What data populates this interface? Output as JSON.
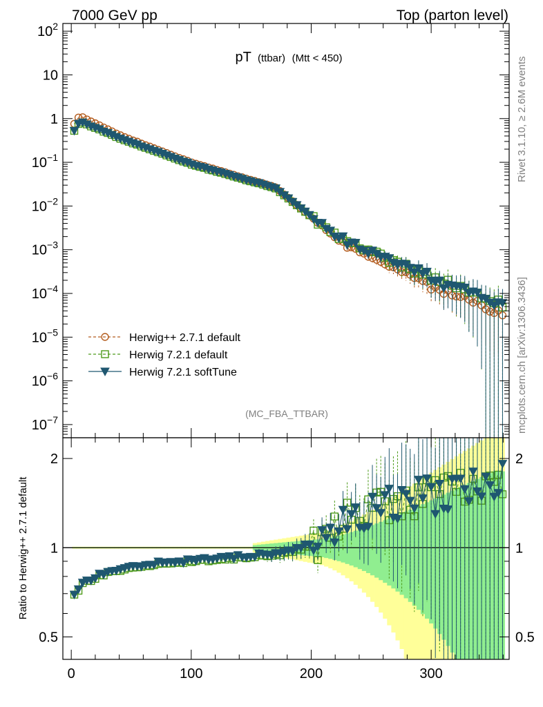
{
  "header": {
    "energy_label": "7000 GeV pp",
    "process_label": "Top (parton level)"
  },
  "side_labels": {
    "rivet": "Rivet 3.1.10, ≥ 2.6M events",
    "mcplots": "mcplots.cern.ch [arXiv:1306.3436]"
  },
  "chart_data": [
    {
      "type": "line",
      "title": "pT",
      "title_sub": "(ttbar)",
      "title_cut": "(Mtt < 450)",
      "watermark": "(MC_FBA_TTBAR)",
      "yscale": "log",
      "xlim": [
        -7,
        365
      ],
      "ylim": [
        5e-08,
        150
      ],
      "y_ticks": [
        {
          "base": "10",
          "exp": "2",
          "value": 100
        },
        {
          "base": "10",
          "exp": "",
          "value": 10
        },
        {
          "base": "1",
          "exp": "",
          "value": 1
        },
        {
          "base": "10",
          "exp": "−1",
          "value": 0.1
        },
        {
          "base": "10",
          "exp": "−2",
          "value": 0.01
        },
        {
          "base": "10",
          "exp": "−3",
          "value": 0.001
        },
        {
          "base": "10",
          "exp": "−4",
          "value": 0.0001
        },
        {
          "base": "10",
          "exp": "−5",
          "value": 1e-05
        },
        {
          "base": "10",
          "exp": "−6",
          "value": 1e-06
        },
        {
          "base": "10",
          "exp": "−7",
          "value": 1e-07
        }
      ],
      "legend": "left-bottom",
      "series": [
        {
          "name": "Herwig++ 2.7.1 default",
          "color": "#b35c1e",
          "marker": "circle",
          "style": "dashed"
        },
        {
          "name": "Herwig 7.2.1 default",
          "color": "#4d9a1a",
          "marker": "square",
          "style": "dashed"
        },
        {
          "name": "Herwig 7.2.1 softTune",
          "color": "#1f5770",
          "marker": "triangle-down",
          "style": "solid"
        }
      ],
      "model": {
        "x_start": 2.5,
        "x_step": 3.5,
        "n": 103,
        "peak_x": 7,
        "peak_y": 1.15,
        "segments": [
          [
            7,
            1.15
          ],
          [
            40,
            0.42
          ],
          [
            100,
            0.1
          ],
          [
            170,
            0.027
          ],
          [
            230,
            0.0012
          ],
          [
            300,
            0.00016
          ],
          [
            360,
            3e-05
          ]
        ]
      }
    },
    {
      "type": "line",
      "ylabel": "Ratio to Herwig++ 2.7.1 default",
      "ylim": [
        0.42,
        2.35
      ],
      "yscale": "log",
      "x_ticks": [
        "0",
        "100",
        "200",
        "300"
      ],
      "x_tick_values": [
        0,
        100,
        200,
        300
      ],
      "y_ticks": [
        "0.5",
        "1",
        "2"
      ],
      "y_tick_values": [
        0.5,
        1,
        2
      ],
      "reference": 1,
      "bands": [
        {
          "name": "Herwig++ 2.7.1 default stat. uncertainty (wide)",
          "color": "#ffff99"
        },
        {
          "name": "Herwig++ 2.7.1 default stat. uncertainty (narrow)",
          "color": "#90ee90"
        }
      ],
      "ratio_trend": [
        [
          2.5,
          0.69
        ],
        [
          10,
          0.76
        ],
        [
          30,
          0.82
        ],
        [
          60,
          0.87
        ],
        [
          100,
          0.9
        ],
        [
          150,
          0.93
        ],
        [
          175,
          0.95
        ],
        [
          195,
          1.0
        ],
        [
          215,
          1.1
        ],
        [
          240,
          1.35
        ],
        [
          270,
          1.45
        ],
        [
          300,
          1.5
        ],
        [
          330,
          1.6
        ],
        [
          360,
          1.75
        ]
      ]
    }
  ]
}
